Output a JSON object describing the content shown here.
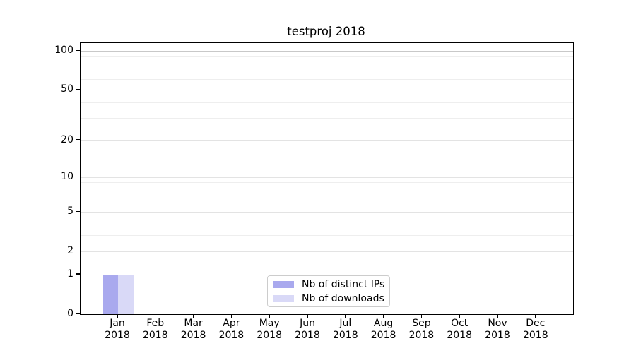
{
  "chart_data": {
    "type": "bar",
    "title": "testproj 2018",
    "categories": [
      "Jan",
      "Feb",
      "Mar",
      "Apr",
      "May",
      "Jun",
      "Jul",
      "Aug",
      "Sep",
      "Oct",
      "Nov",
      "Dec"
    ],
    "category_year": "2018",
    "series": [
      {
        "name": "Nb of distinct IPs",
        "color": "#a9a9ee",
        "values": [
          1,
          0,
          0,
          0,
          0,
          0,
          0,
          0,
          0,
          0,
          0,
          0
        ]
      },
      {
        "name": "Nb of downloads",
        "color": "#d9d9f7",
        "values": [
          1,
          0,
          0,
          0,
          0,
          0,
          0,
          0,
          0,
          0,
          0,
          0
        ]
      }
    ],
    "y_axis": {
      "scale": "log1p",
      "major_ticks": [
        0,
        1,
        2,
        5,
        10,
        20,
        50,
        100
      ],
      "minor_gridlines": [
        3,
        4,
        6,
        7,
        8,
        9,
        30,
        40,
        60,
        70,
        80,
        90
      ],
      "top_value": 115
    },
    "x_axis": {
      "tick_count": 12,
      "labels_two_line": true
    },
    "legend": {
      "position": "lower center"
    },
    "grid": {
      "major_color": "#e3e3e3",
      "minor_color": "#eeeeee",
      "emphasis_value": 100,
      "emphasis_color": "#c8c8c8"
    }
  }
}
